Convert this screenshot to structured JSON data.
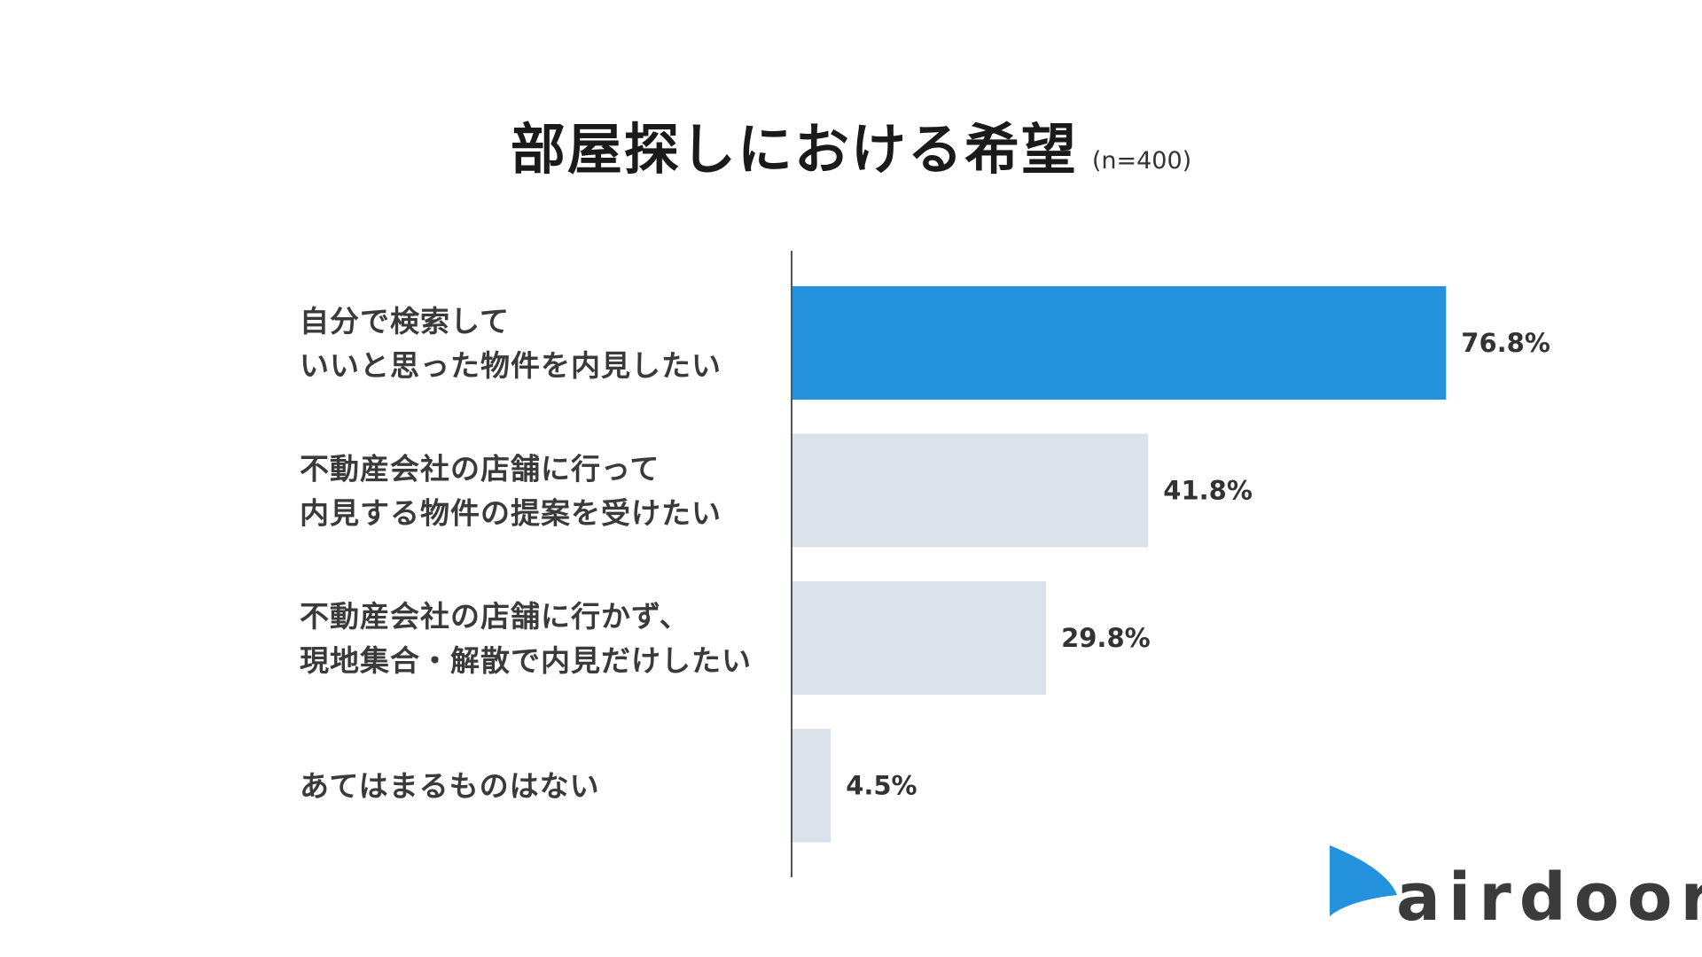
{
  "chart_data": {
    "type": "bar",
    "orientation": "horizontal",
    "title": "部屋探しにおける希望",
    "subtitle": "(n=400)",
    "categories": [
      [
        "自分で検索して",
        "いいと思った物件を内見したい"
      ],
      [
        "不動産会社の店舗に行って",
        "内見する物件の提案を受けたい"
      ],
      [
        "不動産会社の店舗に行かず、",
        "現地集合・解散で内見だけしたい"
      ],
      [
        "あてはまるものはない"
      ]
    ],
    "values": [
      76.8,
      41.8,
      29.8,
      4.5
    ],
    "value_labels": [
      "76.8%",
      "41.8%",
      "29.8%",
      "4.5%"
    ],
    "unit": "%",
    "highlight_index": 0,
    "colors": {
      "highlight": "#2592DD",
      "default": "#DBE2E9",
      "axis": "#555555"
    },
    "xlim": [
      0,
      100
    ],
    "grid": false,
    "legend": "none"
  },
  "logo": {
    "text": "airdoor",
    "icon": "airdoor-flag-icon",
    "color": "#2592DD"
  }
}
